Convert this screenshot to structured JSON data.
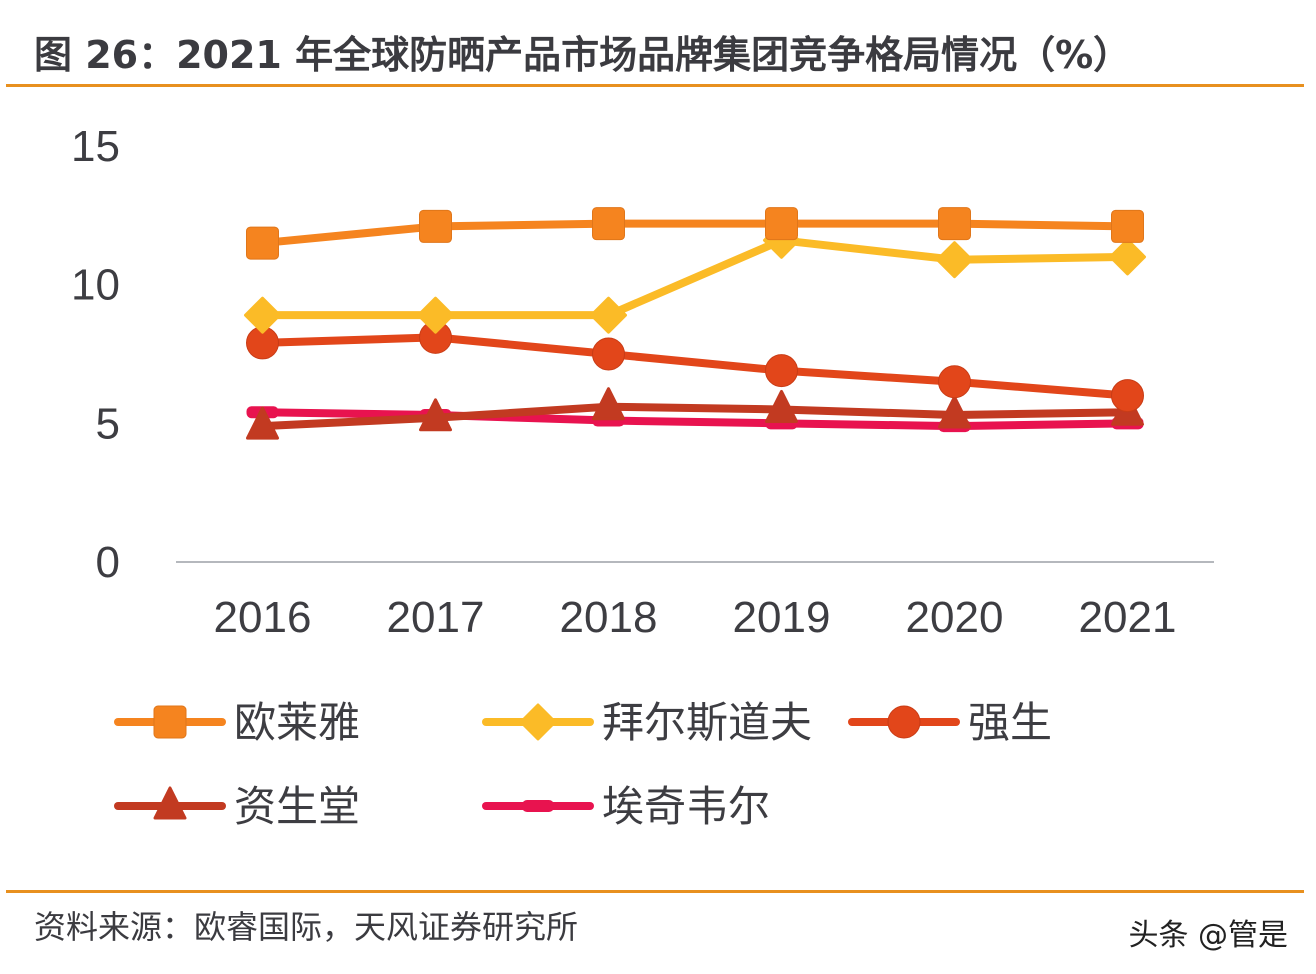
{
  "header": {
    "title": "图 26：2021 年全球防晒产品市场品牌集团竞争格局情况（%）"
  },
  "footer": {
    "source": "资料来源：欧睿国际，天风证券研究所",
    "watermark": "头条 @管是"
  },
  "chart_data": {
    "type": "line",
    "title": "2021 年全球防晒产品市场品牌集团竞争格局情况（%）",
    "xlabel": "",
    "ylabel": "",
    "categories": [
      "2016",
      "2017",
      "2018",
      "2019",
      "2020",
      "2021"
    ],
    "ylim": [
      0,
      15
    ],
    "yticks": [
      0,
      5,
      10,
      15
    ],
    "ytick_labels": [
      "0",
      "5",
      "10",
      "15"
    ],
    "grid": false,
    "legend_position": "bottom",
    "series": [
      {
        "name": "欧莱雅",
        "marker": "square",
        "color": "#f5841f",
        "values": [
          11.5,
          12.1,
          12.2,
          12.2,
          12.2,
          12.1
        ]
      },
      {
        "name": "拜尔斯道夫",
        "marker": "diamond",
        "color": "#fbbb27",
        "values": [
          8.9,
          8.9,
          8.9,
          11.6,
          10.9,
          11.0
        ]
      },
      {
        "name": "强生",
        "marker": "circle",
        "color": "#e2461a",
        "values": [
          7.9,
          8.1,
          7.5,
          6.9,
          6.5,
          6.0
        ]
      },
      {
        "name": "资生堂",
        "marker": "triangle",
        "color": "#c23a21",
        "values": [
          4.9,
          5.2,
          5.6,
          5.5,
          5.3,
          5.4
        ]
      },
      {
        "name": "埃奇韦尔",
        "marker": "dash",
        "color": "#e8134f",
        "values": [
          5.4,
          5.3,
          5.1,
          5.0,
          4.9,
          5.0
        ]
      }
    ]
  }
}
